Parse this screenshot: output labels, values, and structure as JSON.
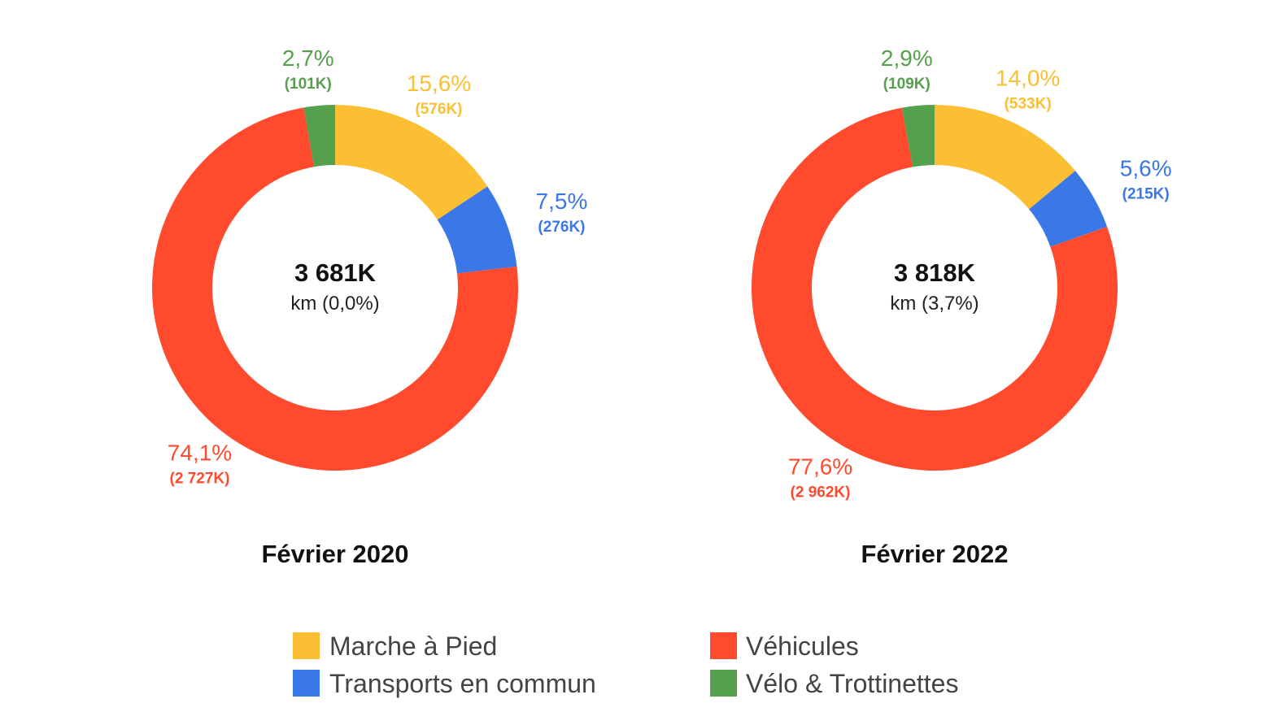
{
  "chart_data": {
    "type": "pie",
    "categories": [
      "Marche à Pied",
      "Transports en commun",
      "Véhicules",
      "Vélo & Trottinettes"
    ],
    "colors": {
      "Marche à Pied": "#FCBF33",
      "Transports en commun": "#3A78E8",
      "Véhicules": "#FF4A2E",
      "Vélo & Trottinettes": "#55A04C"
    },
    "charts": [
      {
        "title": "Février 2020",
        "center_total": "3 681K",
        "center_sub": "km (0,0%)",
        "values": [
          576,
          276,
          2727,
          101
        ],
        "pct_labels": [
          "15,6%",
          "7,5%",
          "74,1%",
          "2,7%"
        ],
        "abs_labels": [
          "(576K)",
          "(276K)",
          "(2 727K)",
          "(101K)"
        ]
      },
      {
        "title": "Février 2022",
        "center_total": "3 818K",
        "center_sub": "km (3,7%)",
        "values": [
          533,
          215,
          2962,
          109
        ],
        "pct_labels": [
          "14,0%",
          "5,6%",
          "77,6%",
          "2,9%"
        ],
        "abs_labels": [
          "(533K)",
          "(215K)",
          "(2 962K)",
          "(109K)"
        ]
      }
    ],
    "legend": [
      "Marche à Pied",
      "Transports en commun",
      "Véhicules",
      "Vélo & Trottinettes"
    ]
  }
}
